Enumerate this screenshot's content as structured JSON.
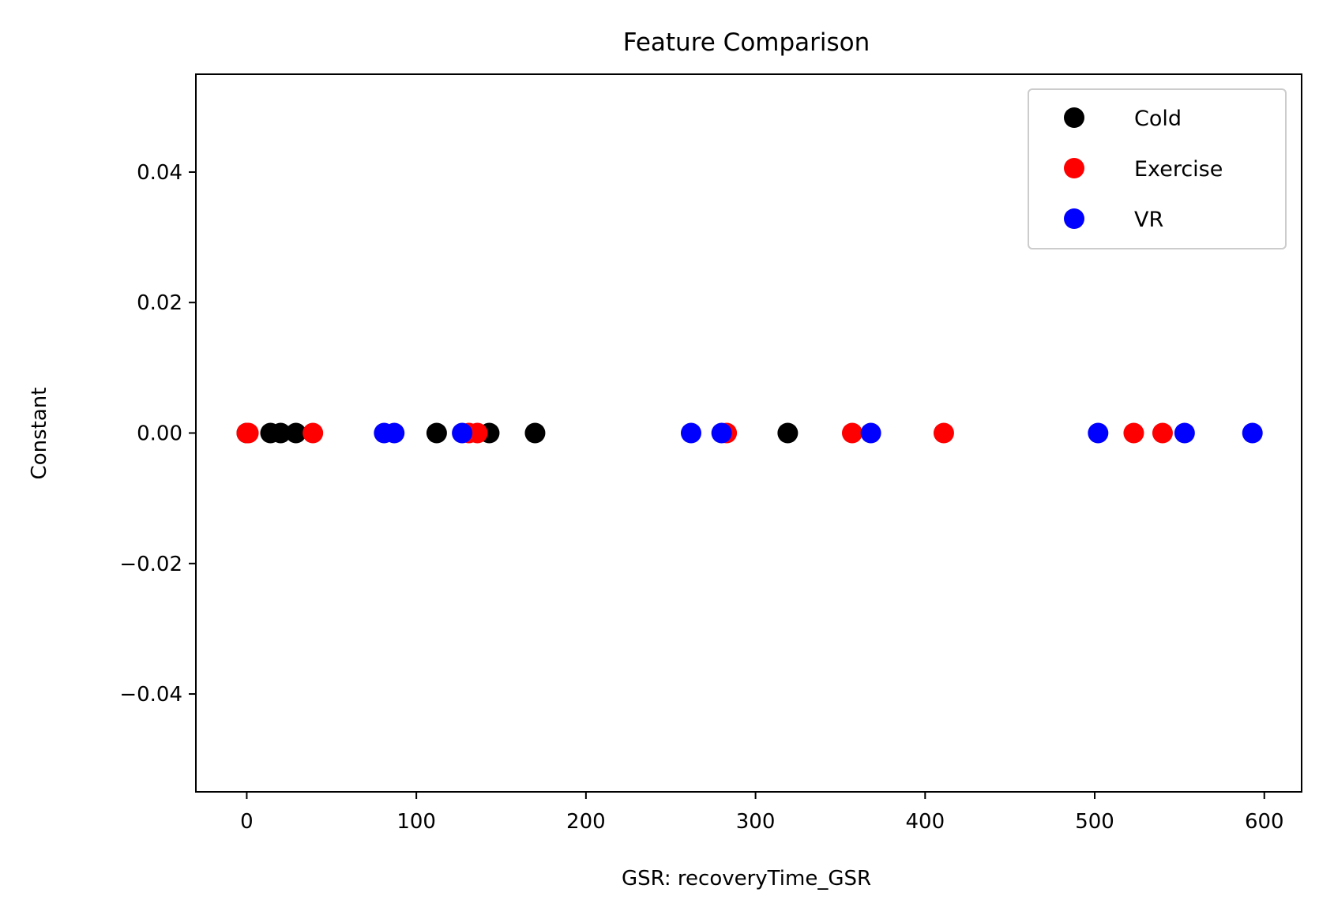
{
  "chart_data": {
    "type": "scatter",
    "title": "Feature Comparison",
    "xlabel": "GSR: recoveryTime_GSR",
    "ylabel": "Constant",
    "xlim": [
      -30,
      622
    ],
    "ylim": [
      -0.055,
      0.055
    ],
    "xticks": [
      0,
      100,
      200,
      300,
      400,
      500,
      600
    ],
    "xtick_labels": [
      "0",
      "100",
      "200",
      "300",
      "400",
      "500",
      "600"
    ],
    "yticks": [
      0.04,
      0.02,
      0.0,
      -0.02,
      -0.04
    ],
    "ytick_labels": [
      "0.04",
      "0.02",
      "0.00",
      "−0.02",
      "−0.04"
    ],
    "grid": false,
    "legend_position": "top-right",
    "series": [
      {
        "name": "Cold",
        "color": "#000000",
        "points": [
          {
            "x": 0,
            "y": 0
          },
          {
            "x": 14,
            "y": 0
          },
          {
            "x": 20,
            "y": 0
          },
          {
            "x": 29,
            "y": 0
          },
          {
            "x": 112,
            "y": 0
          },
          {
            "x": 143,
            "y": 0
          },
          {
            "x": 170,
            "y": 0
          },
          {
            "x": 319,
            "y": 0
          }
        ]
      },
      {
        "name": "Exercise",
        "color": "#ff0000",
        "points": [
          {
            "x": 0,
            "y": 0
          },
          {
            "x": 1,
            "y": 0
          },
          {
            "x": 39,
            "y": 0
          },
          {
            "x": 131,
            "y": 0
          },
          {
            "x": 136,
            "y": 0
          },
          {
            "x": 283,
            "y": 0
          },
          {
            "x": 357,
            "y": 0
          },
          {
            "x": 411,
            "y": 0
          },
          {
            "x": 523,
            "y": 0
          },
          {
            "x": 540,
            "y": 0
          }
        ]
      },
      {
        "name": "VR",
        "color": "#0000ff",
        "points": [
          {
            "x": 81,
            "y": 0
          },
          {
            "x": 87,
            "y": 0
          },
          {
            "x": 127,
            "y": 0
          },
          {
            "x": 262,
            "y": 0
          },
          {
            "x": 280,
            "y": 0
          },
          {
            "x": 368,
            "y": 0
          },
          {
            "x": 502,
            "y": 0
          },
          {
            "x": 553,
            "y": 0
          },
          {
            "x": 593,
            "y": 0
          }
        ]
      }
    ]
  }
}
